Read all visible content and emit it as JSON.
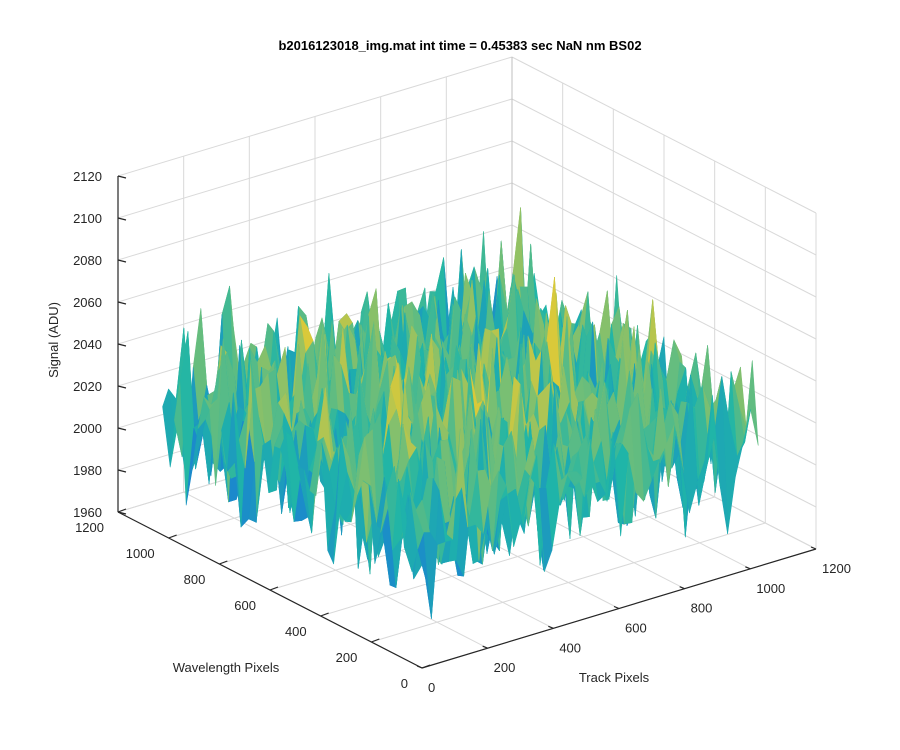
{
  "chart_data": {
    "type": "surface",
    "title": "b2016123018_img.mat int time = 0.45383 sec  NaN nm BS02",
    "xlabel": "Track Pixels",
    "ylabel": "Wavelength Pixels",
    "zlabel": "Signal (ADU)",
    "xlim": [
      0,
      1200
    ],
    "ylim": [
      0,
      1200
    ],
    "zlim": [
      1960,
      2120
    ],
    "xticks": [
      "0",
      "200",
      "400",
      "600",
      "800",
      "1000",
      "1200"
    ],
    "yticks": [
      "0",
      "200",
      "400",
      "600",
      "800",
      "1000",
      "1200"
    ],
    "zticks": [
      "1960",
      "1980",
      "2000",
      "2020",
      "2040",
      "2060",
      "2080",
      "2100",
      "2120"
    ],
    "surface_extent": {
      "x": [
        0,
        1024
      ],
      "y": [
        0,
        1024
      ]
    },
    "signal_baseline": 2020,
    "signal_peak_approx": 2115,
    "signal_trough_approx": 1985,
    "grid": true,
    "colormap": "parula",
    "colors": {
      "low": "#1a7fd4",
      "mid": "#1fb5a8",
      "high": "#d9c93a",
      "axis": "#262626",
      "grid": "#d9d9d9"
    }
  }
}
